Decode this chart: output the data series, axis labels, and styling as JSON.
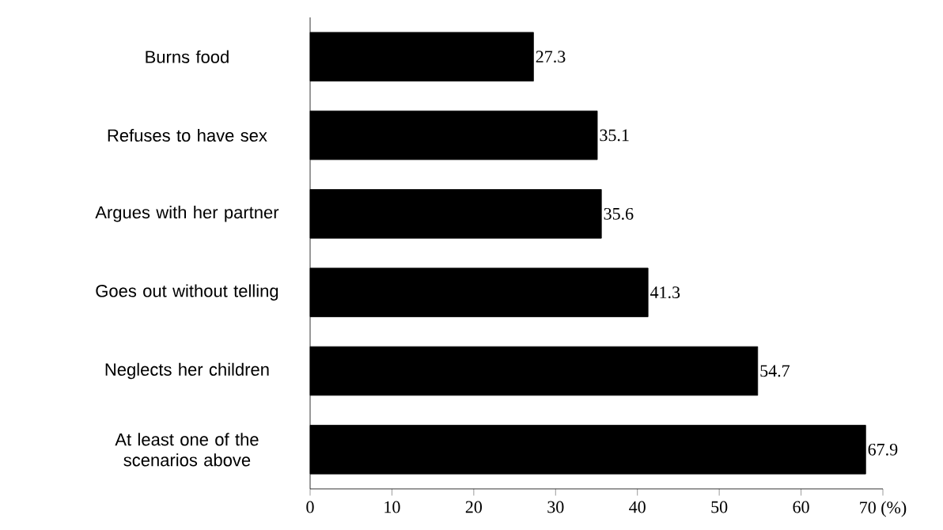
{
  "chart_data": {
    "type": "bar",
    "orientation": "horizontal",
    "categories": [
      "Burns food",
      "Refuses to have sex",
      "Argues with her partner",
      "Goes out without telling",
      "Neglects her children",
      "At least one of the scenarios above"
    ],
    "values": [
      27.3,
      35.1,
      35.6,
      41.3,
      54.7,
      67.9
    ],
    "color": "#000000",
    "xlim": [
      0,
      70
    ],
    "xticks": [
      0,
      10,
      20,
      30,
      40,
      50,
      60,
      {
        "value": 70,
        "label": "70 (%)"
      }
    ],
    "data_labels": true
  }
}
